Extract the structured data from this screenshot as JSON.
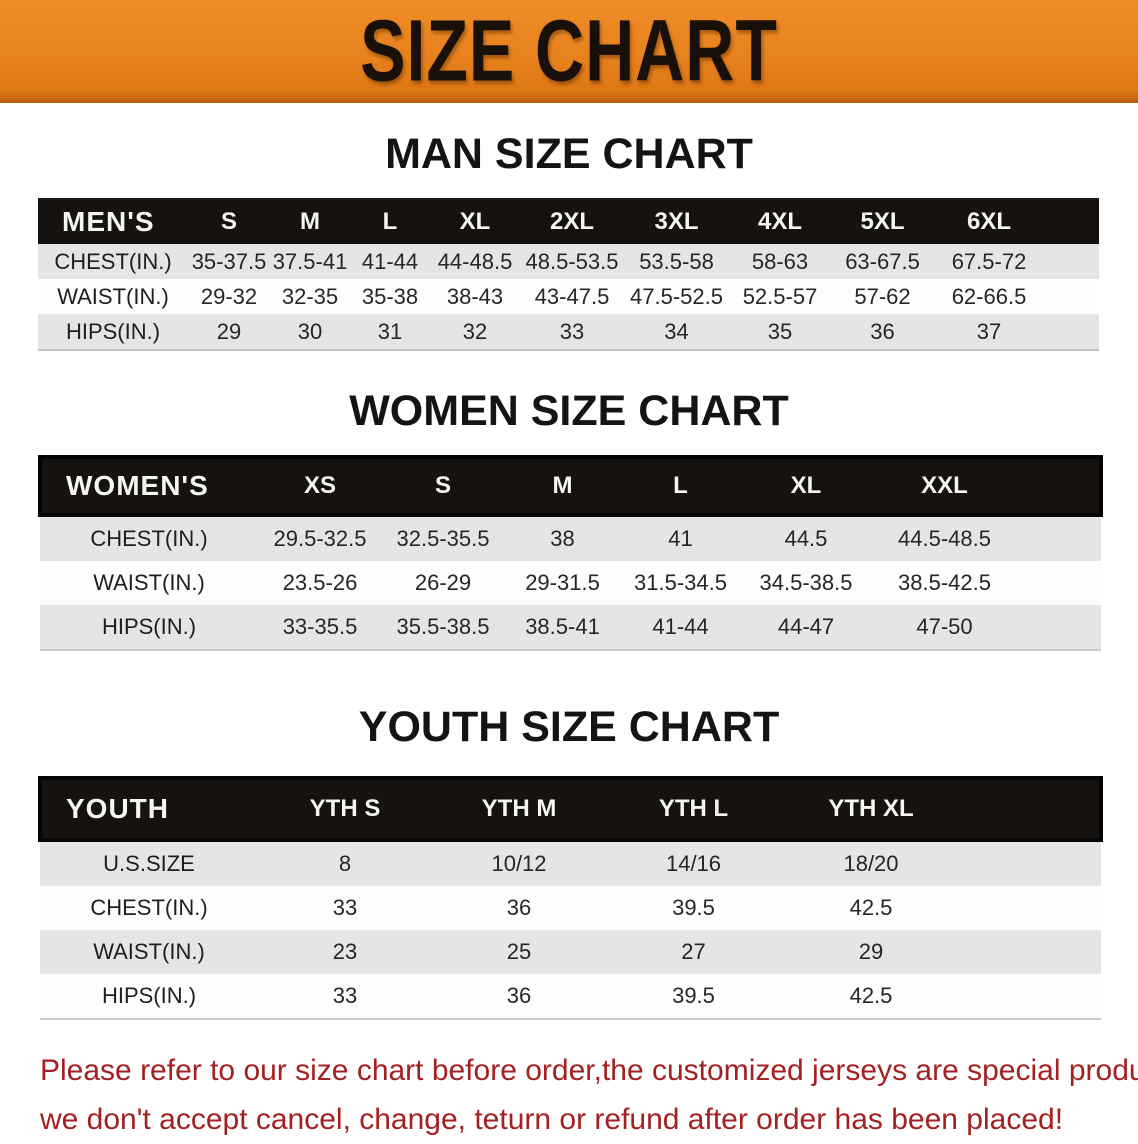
{
  "banner": {
    "title": "SIZE CHART",
    "bg_color": "#e8821e",
    "text_color": "#19100a"
  },
  "sections": [
    {
      "heading": "MAN SIZE CHART",
      "table": {
        "label": "MEN'S",
        "columns": [
          "S",
          "M",
          "L",
          "XL",
          "2XL",
          "3XL",
          "4XL",
          "5XL",
          "6XL"
        ],
        "rows": [
          {
            "label": "CHEST(IN.)",
            "values": [
              "35-37.5",
              "37.5-41",
              "41-44",
              "44-48.5",
              "48.5-53.5",
              "53.5-58",
              "58-63",
              "63-67.5",
              "67.5-72"
            ]
          },
          {
            "label": "WAIST(IN.)",
            "values": [
              "29-32",
              "32-35",
              "35-38",
              "38-43",
              "43-47.5",
              "47.5-52.5",
              "52.5-57",
              "57-62",
              "62-66.5"
            ]
          },
          {
            "label": "HIPS(IN.)",
            "values": [
              "29",
              "30",
              "31",
              "32",
              "33",
              "34",
              "35",
              "36",
              "37"
            ]
          }
        ]
      }
    },
    {
      "heading": "WOMEN SIZE CHART",
      "table": {
        "label": "WOMEN'S",
        "columns": [
          "XS",
          "S",
          "M",
          "L",
          "XL",
          "XXL"
        ],
        "rows": [
          {
            "label": "CHEST(IN.)",
            "values": [
              "29.5-32.5",
              "32.5-35.5",
              "38",
              "41",
              "44.5",
              "44.5-48.5"
            ]
          },
          {
            "label": "WAIST(IN.)",
            "values": [
              "23.5-26",
              "26-29",
              "29-31.5",
              "31.5-34.5",
              "34.5-38.5",
              "38.5-42.5"
            ]
          },
          {
            "label": "HIPS(IN.)",
            "values": [
              "33-35.5",
              "35.5-38.5",
              "38.5-41",
              "41-44",
              "44-47",
              "47-50"
            ]
          }
        ]
      }
    },
    {
      "heading": "YOUTH SIZE CHART",
      "table": {
        "label": "YOUTH",
        "columns": [
          "YTH S",
          "YTH M",
          "YTH L",
          "YTH XL"
        ],
        "rows": [
          {
            "label": "U.S.SIZE",
            "values": [
              "8",
              "10/12",
              "14/16",
              "18/20"
            ]
          },
          {
            "label": "CHEST(IN.)",
            "values": [
              "33",
              "36",
              "39.5",
              "42.5"
            ]
          },
          {
            "label": "WAIST(IN.)",
            "values": [
              "23",
              "25",
              "27",
              "29"
            ]
          },
          {
            "label": "HIPS(IN.)",
            "values": [
              "33",
              "36",
              "39.5",
              "42.5"
            ]
          }
        ]
      }
    }
  ],
  "disclaimer": {
    "line1": "Please refer to our size chart before order,the customized jerseys are special products,",
    "line2": "we don't accept cancel, change, teturn or refund after order has been placed!",
    "color": "#a32121"
  }
}
